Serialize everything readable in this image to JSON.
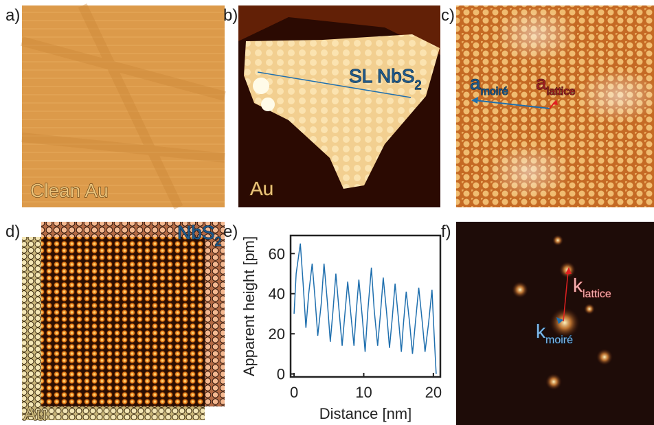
{
  "panel_labels": [
    "a)",
    "b)",
    "c)",
    "d)",
    "e)",
    "f)"
  ],
  "annotations": {
    "a": "Clean Au",
    "b_substrate": "Au",
    "b_island": {
      "text": "SL NbS",
      "sub": "2"
    },
    "c_moire": {
      "text": "a",
      "sub": "moiré"
    },
    "c_lattice": {
      "text": "a",
      "sub": "lattice"
    },
    "d_top": {
      "text": "NbS",
      "sub": "2"
    },
    "d_bottom": "Au",
    "f_lattice": {
      "text": "k",
      "sub": "lattice"
    },
    "f_moire": {
      "text": "k",
      "sub": "moiré"
    }
  },
  "chart_data": {
    "type": "line",
    "xlabel": "Distance [nm]",
    "ylabel": "Apparent height [pm]",
    "xlim": [
      -0.5,
      21
    ],
    "ylim": [
      -1.5,
      69
    ],
    "xticks": [
      0,
      10,
      20
    ],
    "yticks": [
      0,
      20,
      40,
      60
    ],
    "x": [
      0,
      0.3,
      0.9,
      1.3,
      1.7,
      2.1,
      2.6,
      3.0,
      3.4,
      3.9,
      4.3,
      4.8,
      5.2,
      5.6,
      6.0,
      6.5,
      6.9,
      7.3,
      7.7,
      8.2,
      8.6,
      8.9,
      9.3,
      9.8,
      10.2,
      10.6,
      11.1,
      11.5,
      12.0,
      12.4,
      12.8,
      13.3,
      13.7,
      14.1,
      14.5,
      15.0,
      15.4,
      15.7,
      16.1,
      16.6,
      17.0,
      17.4,
      17.9,
      18.4,
      18.8,
      19.3,
      19.8,
      20.1,
      20.4
    ],
    "series": [
      {
        "color": "#1f6fae",
        "values": [
          30,
          50,
          65,
          45,
          23,
          40,
          55,
          38,
          19,
          35,
          55,
          35,
          16,
          32,
          50,
          30,
          14,
          30,
          46,
          28,
          14,
          30,
          47,
          28,
          11,
          32,
          53,
          32,
          14,
          30,
          48,
          30,
          13,
          28,
          45,
          27,
          11,
          25,
          41,
          25,
          10,
          25,
          43,
          26,
          11,
          25,
          42,
          20,
          0
        ]
      }
    ]
  }
}
